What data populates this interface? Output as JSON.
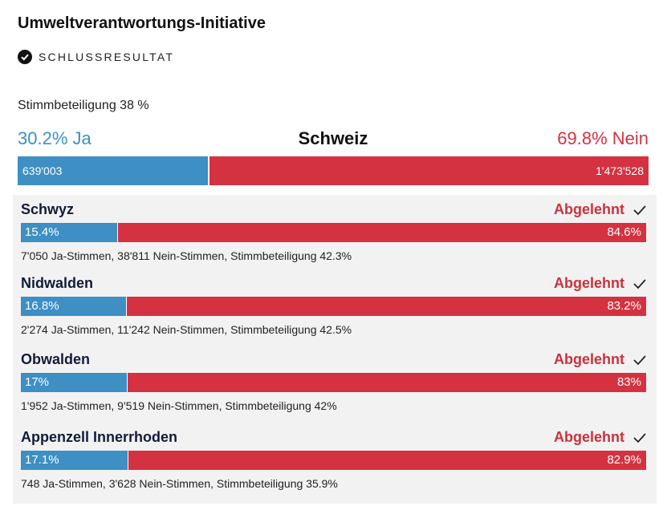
{
  "title": "Umweltverantwortungs-Initiative",
  "status": {
    "label": "SCHLUSSRESULTAT",
    "icon": "check-circle-icon"
  },
  "turnout": "Stimmbeteiligung 38 %",
  "colors": {
    "ja": "#3d8fc4",
    "nein": "#d43240",
    "panel": "#f2f2f2"
  },
  "chart_data": [
    {
      "type": "bar",
      "name": "Schweiz",
      "ja_label": "30.2% Ja",
      "nein_label": "69.8% Nein",
      "ja_percent": 30.2,
      "nein_percent": 69.8,
      "ja_votes": "639'003",
      "nein_votes": "1'473'528"
    },
    {
      "type": "bar",
      "cantons": [
        {
          "name": "Schwyz",
          "result": "Abgelehnt",
          "ja_percent": 15.4,
          "nein_percent": 84.6,
          "ja_text": "15.4%",
          "nein_text": "84.6%",
          "detail": "7'050 Ja-Stimmen, 38'811 Nein-Stimmen, Stimmbeteiligung 42.3%"
        },
        {
          "name": "Nidwalden",
          "result": "Abgelehnt",
          "ja_percent": 16.8,
          "nein_percent": 83.2,
          "ja_text": "16.8%",
          "nein_text": "83.2%",
          "detail": "2'274 Ja-Stimmen, 11'242 Nein-Stimmen, Stimmbeteiligung 42.5%"
        },
        {
          "name": "Obwalden",
          "result": "Abgelehnt",
          "ja_percent": 17,
          "nein_percent": 83,
          "ja_text": "17%",
          "nein_text": "83%",
          "detail": "1'952 Ja-Stimmen, 9'519 Nein-Stimmen, Stimmbeteiligung 42%"
        },
        {
          "name": "Appenzell Innerrhoden",
          "result": "Abgelehnt",
          "ja_percent": 17.1,
          "nein_percent": 82.9,
          "ja_text": "17.1%",
          "nein_text": "82.9%",
          "detail": "748 Ja-Stimmen, 3'628 Nein-Stimmen, Stimmbeteiligung 35.9%"
        }
      ]
    }
  ]
}
